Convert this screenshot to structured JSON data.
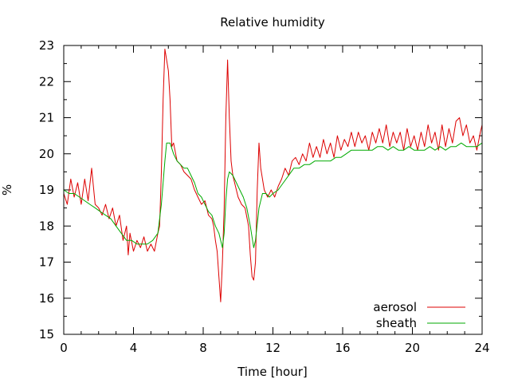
{
  "chart_data": {
    "type": "line",
    "title": "Relative humidity",
    "xlabel": "Time [hour]",
    "ylabel": "%",
    "xlim": [
      0,
      24
    ],
    "ylim": [
      15,
      23
    ],
    "xticks": [
      0,
      4,
      8,
      12,
      16,
      20,
      24
    ],
    "yticks": [
      15,
      16,
      17,
      18,
      19,
      20,
      21,
      22,
      23
    ],
    "grid": false,
    "legend_position": "bottom-right",
    "series": [
      {
        "name": "aerosol",
        "color": "#dd0000",
        "points": [
          [
            0.0,
            18.9
          ],
          [
            0.2,
            18.6
          ],
          [
            0.4,
            19.3
          ],
          [
            0.6,
            18.8
          ],
          [
            0.8,
            19.2
          ],
          [
            1.0,
            18.6
          ],
          [
            1.2,
            19.3
          ],
          [
            1.4,
            18.7
          ],
          [
            1.6,
            19.6
          ],
          [
            1.8,
            18.6
          ],
          [
            2.0,
            18.5
          ],
          [
            2.2,
            18.3
          ],
          [
            2.4,
            18.6
          ],
          [
            2.6,
            18.2
          ],
          [
            2.8,
            18.5
          ],
          [
            3.0,
            18.0
          ],
          [
            3.2,
            18.3
          ],
          [
            3.4,
            17.6
          ],
          [
            3.6,
            18.0
          ],
          [
            3.7,
            17.2
          ],
          [
            3.8,
            17.8
          ],
          [
            4.0,
            17.3
          ],
          [
            4.2,
            17.6
          ],
          [
            4.4,
            17.4
          ],
          [
            4.6,
            17.7
          ],
          [
            4.8,
            17.3
          ],
          [
            5.0,
            17.5
          ],
          [
            5.2,
            17.3
          ],
          [
            5.4,
            17.8
          ],
          [
            5.5,
            18.0
          ],
          [
            5.6,
            19.5
          ],
          [
            5.7,
            21.5
          ],
          [
            5.8,
            22.9
          ],
          [
            5.9,
            22.6
          ],
          [
            6.0,
            22.3
          ],
          [
            6.1,
            21.5
          ],
          [
            6.2,
            20.2
          ],
          [
            6.3,
            20.3
          ],
          [
            6.5,
            19.8
          ],
          [
            6.7,
            19.7
          ],
          [
            6.9,
            19.5
          ],
          [
            7.1,
            19.4
          ],
          [
            7.3,
            19.3
          ],
          [
            7.5,
            19.0
          ],
          [
            7.7,
            18.8
          ],
          [
            7.9,
            18.6
          ],
          [
            8.1,
            18.7
          ],
          [
            8.3,
            18.3
          ],
          [
            8.5,
            18.2
          ],
          [
            8.6,
            18.0
          ],
          [
            8.7,
            17.6
          ],
          [
            8.8,
            17.3
          ],
          [
            8.9,
            16.6
          ],
          [
            9.0,
            15.9
          ],
          [
            9.1,
            17.0
          ],
          [
            9.2,
            18.5
          ],
          [
            9.3,
            21.0
          ],
          [
            9.4,
            22.6
          ],
          [
            9.5,
            21.0
          ],
          [
            9.6,
            19.8
          ],
          [
            9.7,
            19.4
          ],
          [
            9.8,
            19.2
          ],
          [
            10.0,
            18.8
          ],
          [
            10.2,
            18.6
          ],
          [
            10.4,
            18.5
          ],
          [
            10.6,
            18.0
          ],
          [
            10.7,
            17.2
          ],
          [
            10.8,
            16.6
          ],
          [
            10.9,
            16.5
          ],
          [
            11.0,
            17.0
          ],
          [
            11.1,
            19.0
          ],
          [
            11.2,
            20.3
          ],
          [
            11.3,
            19.6
          ],
          [
            11.5,
            19.0
          ],
          [
            11.7,
            18.8
          ],
          [
            11.9,
            19.0
          ],
          [
            12.1,
            18.8
          ],
          [
            12.3,
            19.1
          ],
          [
            12.5,
            19.3
          ],
          [
            12.7,
            19.6
          ],
          [
            12.9,
            19.4
          ],
          [
            13.1,
            19.8
          ],
          [
            13.3,
            19.9
          ],
          [
            13.5,
            19.7
          ],
          [
            13.7,
            20.0
          ],
          [
            13.9,
            19.8
          ],
          [
            14.1,
            20.3
          ],
          [
            14.3,
            19.9
          ],
          [
            14.5,
            20.2
          ],
          [
            14.7,
            19.9
          ],
          [
            14.9,
            20.4
          ],
          [
            15.1,
            20.0
          ],
          [
            15.3,
            20.3
          ],
          [
            15.5,
            19.9
          ],
          [
            15.7,
            20.5
          ],
          [
            15.9,
            20.1
          ],
          [
            16.1,
            20.4
          ],
          [
            16.3,
            20.2
          ],
          [
            16.5,
            20.6
          ],
          [
            16.7,
            20.2
          ],
          [
            16.9,
            20.6
          ],
          [
            17.1,
            20.3
          ],
          [
            17.3,
            20.5
          ],
          [
            17.5,
            20.1
          ],
          [
            17.7,
            20.6
          ],
          [
            17.9,
            20.3
          ],
          [
            18.1,
            20.7
          ],
          [
            18.3,
            20.3
          ],
          [
            18.5,
            20.8
          ],
          [
            18.7,
            20.2
          ],
          [
            18.9,
            20.6
          ],
          [
            19.1,
            20.3
          ],
          [
            19.3,
            20.6
          ],
          [
            19.5,
            20.1
          ],
          [
            19.7,
            20.7
          ],
          [
            19.9,
            20.2
          ],
          [
            20.1,
            20.5
          ],
          [
            20.3,
            20.1
          ],
          [
            20.5,
            20.6
          ],
          [
            20.7,
            20.2
          ],
          [
            20.9,
            20.8
          ],
          [
            21.1,
            20.3
          ],
          [
            21.3,
            20.6
          ],
          [
            21.5,
            20.1
          ],
          [
            21.7,
            20.8
          ],
          [
            21.9,
            20.2
          ],
          [
            22.1,
            20.7
          ],
          [
            22.3,
            20.3
          ],
          [
            22.5,
            20.9
          ],
          [
            22.7,
            21.0
          ],
          [
            22.9,
            20.5
          ],
          [
            23.1,
            20.8
          ],
          [
            23.3,
            20.3
          ],
          [
            23.5,
            20.5
          ],
          [
            23.7,
            20.1
          ],
          [
            23.9,
            20.6
          ],
          [
            24.0,
            20.8
          ]
        ]
      },
      {
        "name": "sheath",
        "color": "#00aa00",
        "points": [
          [
            0.0,
            19.0
          ],
          [
            0.3,
            18.9
          ],
          [
            0.6,
            18.9
          ],
          [
            0.9,
            18.8
          ],
          [
            1.2,
            18.7
          ],
          [
            1.5,
            18.6
          ],
          [
            1.8,
            18.5
          ],
          [
            2.1,
            18.4
          ],
          [
            2.4,
            18.3
          ],
          [
            2.7,
            18.2
          ],
          [
            3.0,
            18.0
          ],
          [
            3.3,
            17.8
          ],
          [
            3.6,
            17.6
          ],
          [
            3.9,
            17.6
          ],
          [
            4.2,
            17.5
          ],
          [
            4.5,
            17.5
          ],
          [
            4.8,
            17.5
          ],
          [
            5.1,
            17.6
          ],
          [
            5.4,
            17.8
          ],
          [
            5.6,
            18.6
          ],
          [
            5.8,
            19.8
          ],
          [
            5.9,
            20.3
          ],
          [
            6.1,
            20.3
          ],
          [
            6.3,
            20.0
          ],
          [
            6.5,
            19.8
          ],
          [
            6.7,
            19.7
          ],
          [
            6.9,
            19.6
          ],
          [
            7.1,
            19.6
          ],
          [
            7.3,
            19.4
          ],
          [
            7.5,
            19.2
          ],
          [
            7.7,
            18.9
          ],
          [
            7.9,
            18.8
          ],
          [
            8.1,
            18.6
          ],
          [
            8.3,
            18.4
          ],
          [
            8.5,
            18.3
          ],
          [
            8.7,
            18.0
          ],
          [
            8.9,
            17.8
          ],
          [
            9.1,
            17.4
          ],
          [
            9.2,
            17.8
          ],
          [
            9.3,
            18.7
          ],
          [
            9.4,
            19.3
          ],
          [
            9.5,
            19.5
          ],
          [
            9.7,
            19.4
          ],
          [
            9.9,
            19.2
          ],
          [
            10.1,
            19.0
          ],
          [
            10.3,
            18.8
          ],
          [
            10.5,
            18.5
          ],
          [
            10.7,
            18.0
          ],
          [
            10.9,
            17.4
          ],
          [
            11.0,
            17.6
          ],
          [
            11.2,
            18.5
          ],
          [
            11.4,
            18.9
          ],
          [
            11.6,
            18.9
          ],
          [
            11.8,
            18.8
          ],
          [
            12.0,
            18.9
          ],
          [
            12.3,
            19.0
          ],
          [
            12.6,
            19.2
          ],
          [
            12.9,
            19.4
          ],
          [
            13.2,
            19.6
          ],
          [
            13.5,
            19.6
          ],
          [
            13.8,
            19.7
          ],
          [
            14.1,
            19.7
          ],
          [
            14.4,
            19.8
          ],
          [
            14.7,
            19.8
          ],
          [
            15.0,
            19.8
          ],
          [
            15.3,
            19.8
          ],
          [
            15.6,
            19.9
          ],
          [
            15.9,
            19.9
          ],
          [
            16.2,
            20.0
          ],
          [
            16.5,
            20.1
          ],
          [
            16.8,
            20.1
          ],
          [
            17.1,
            20.1
          ],
          [
            17.4,
            20.1
          ],
          [
            17.7,
            20.1
          ],
          [
            18.0,
            20.2
          ],
          [
            18.3,
            20.2
          ],
          [
            18.6,
            20.1
          ],
          [
            18.9,
            20.2
          ],
          [
            19.2,
            20.1
          ],
          [
            19.5,
            20.1
          ],
          [
            19.8,
            20.2
          ],
          [
            20.1,
            20.1
          ],
          [
            20.4,
            20.1
          ],
          [
            20.7,
            20.1
          ],
          [
            21.0,
            20.2
          ],
          [
            21.3,
            20.1
          ],
          [
            21.6,
            20.2
          ],
          [
            21.9,
            20.1
          ],
          [
            22.2,
            20.2
          ],
          [
            22.5,
            20.2
          ],
          [
            22.8,
            20.3
          ],
          [
            23.1,
            20.2
          ],
          [
            23.4,
            20.2
          ],
          [
            23.7,
            20.2
          ],
          [
            24.0,
            20.3
          ]
        ]
      }
    ]
  }
}
